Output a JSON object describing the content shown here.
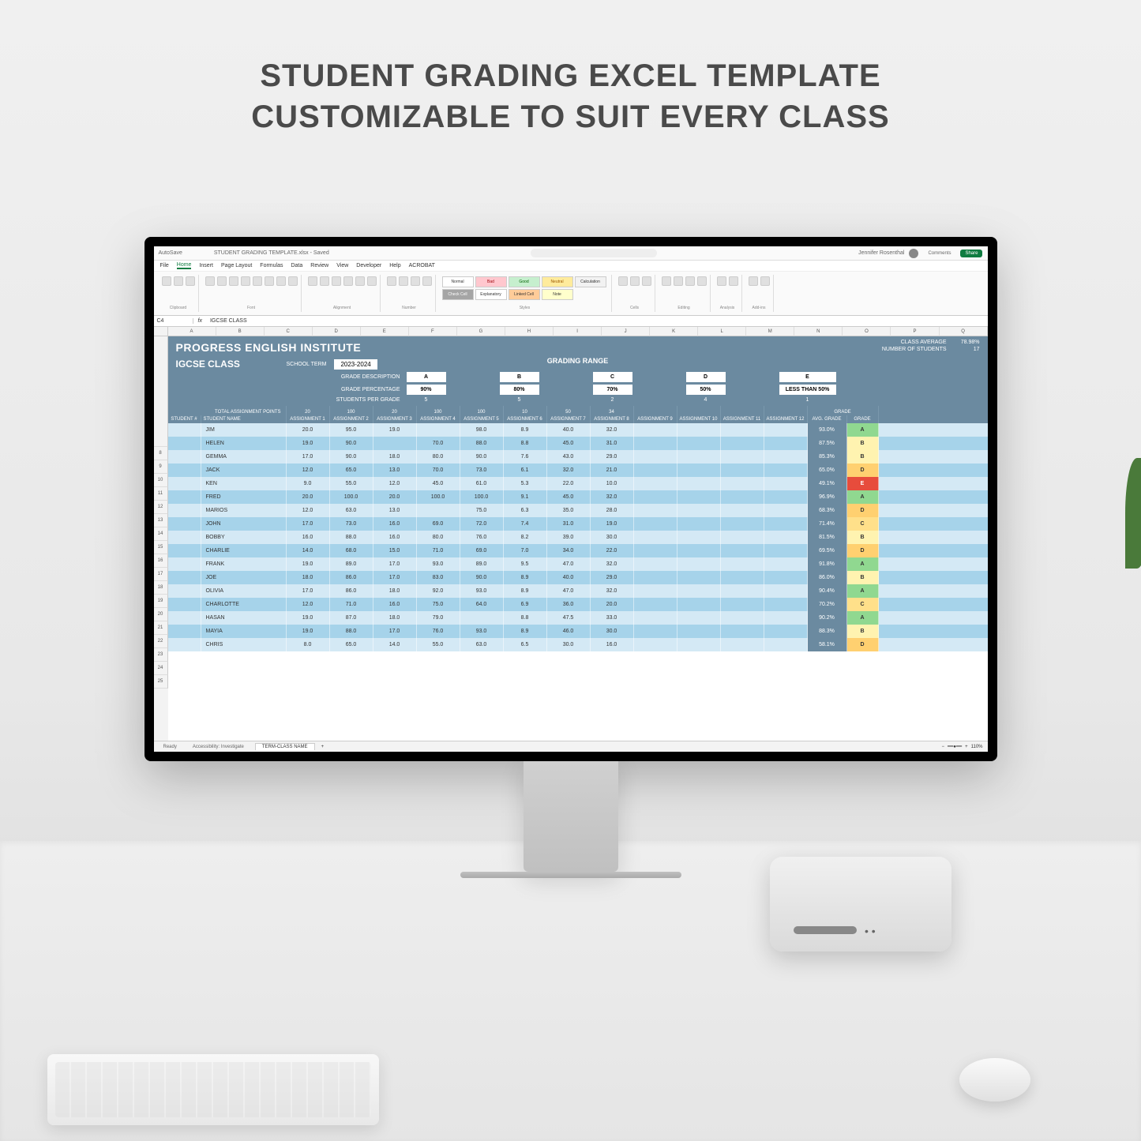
{
  "headline": {
    "line1": "STUDENT GRADING EXCEL TEMPLATE",
    "line2": "CUSTOMIZABLE TO SUIT EVERY CLASS"
  },
  "colors": {
    "header_blue": "#6b8aa0",
    "row_even": "#d4e9f5",
    "row_odd": "#a6d3ea",
    "grade_A": "#90d890",
    "grade_B": "#fff3b0",
    "grade_C": "#ffe08a",
    "grade_D": "#ffd070",
    "grade_E": "#e74c3c",
    "excel_green": "#107c41"
  },
  "excel": {
    "autosave_label": "AutoSave",
    "doc_name": "STUDENT GRADING TEMPLATE.xlsx - Saved",
    "search_placeholder": "Search",
    "user_name": "Jennifer Rosenthal",
    "comments_btn": "Comments",
    "share_btn": "Share",
    "menu": [
      "File",
      "Home",
      "Insert",
      "Page Layout",
      "Formulas",
      "Data",
      "Review",
      "View",
      "Developer",
      "Help",
      "ACROBAT"
    ],
    "active_menu": "Home",
    "ribbon_groups": [
      "Clipboard",
      "Font",
      "Alignment",
      "Number",
      "Styles",
      "Cells",
      "Editing",
      "Analysis",
      "Add-ins"
    ],
    "styles": [
      {
        "label": "Normal",
        "cls": "style-normal"
      },
      {
        "label": "Bad",
        "cls": "style-bad"
      },
      {
        "label": "Good",
        "cls": "style-good"
      },
      {
        "label": "Neutral",
        "cls": "style-neutral"
      },
      {
        "label": "Calculation",
        "cls": "style-calc"
      },
      {
        "label": "Check Cell",
        "cls": "style-check"
      },
      {
        "label": "Explanatory",
        "cls": "style-exp"
      },
      {
        "label": "Linked Cell",
        "cls": "style-link"
      },
      {
        "label": "Note",
        "cls": "style-note"
      }
    ],
    "name_box": "C4",
    "fx": "fx",
    "formula": "IGCSE CLASS",
    "cols": [
      "A",
      "B",
      "C",
      "D",
      "E",
      "F",
      "G",
      "H",
      "I",
      "J",
      "K",
      "L",
      "M",
      "N",
      "O",
      "P",
      "Q"
    ],
    "sheet_tab": "TERM-CLASS NAME",
    "add_sheet": "+",
    "status": "Ready",
    "accessibility": "Accessibility: Investigate",
    "zoom": "110%"
  },
  "sheet": {
    "institute": "PROGRESS ENGLISH INSTITUTE",
    "class_name": "IGCSE CLASS",
    "school_term_label": "SCHOOL TERM",
    "school_term": "2023-2024",
    "grading_range_label": "GRADING RANGE",
    "class_avg_label": "CLASS AVERAGE",
    "class_avg": "78.98%",
    "num_students_label": "NUMBER OF STUDENTS",
    "num_students": "17",
    "grade_desc_label": "GRADE DESCRIPTION",
    "grade_pct_label": "GRADE PERCENTAGE",
    "students_per_grade_label": "STUDENTS PER GRADE",
    "total_points_label": "TOTAL ASSIGNMENT POINTS",
    "grade_section_label": "GRADE",
    "grades": [
      {
        "letter": "A",
        "pct": "90%",
        "count": "5"
      },
      {
        "letter": "B",
        "pct": "80%",
        "count": "5"
      },
      {
        "letter": "C",
        "pct": "70%",
        "count": "2"
      },
      {
        "letter": "D",
        "pct": "50%",
        "count": "4"
      },
      {
        "letter": "E",
        "pct": "LESS THAN 50%",
        "count": "1"
      }
    ],
    "points": [
      "20",
      "100",
      "20",
      "100",
      "100",
      "10",
      "50",
      "34",
      "",
      "",
      "",
      ""
    ],
    "col_headers": {
      "student_num": "STUDENT #",
      "student_name": "STUDENT NAME",
      "assignments": [
        "ASSIGNMENT 1",
        "ASSIGNMENT 2",
        "ASSIGNMENT 3",
        "ASSIGNMENT 4",
        "ASSIGNMENT 5",
        "ASSIGNMENT 6",
        "ASSIGNMENT 7",
        "ASSIGNMENT 8",
        "ASSIGNMENT 9",
        "ASSIGNMENT 10",
        "ASSIGNMENT 11",
        "ASSIGNMENT 12"
      ],
      "avg_grade": "AVG. GRADE",
      "grade": "GRADE"
    },
    "students": [
      {
        "name": "JIM",
        "a": [
          "20.0",
          "95.0",
          "19.0",
          "",
          "98.0",
          "8.9",
          "40.0",
          "32.0"
        ],
        "avg": "93.0%",
        "grade": "A"
      },
      {
        "name": "HELEN",
        "a": [
          "19.0",
          "90.0",
          "",
          "70.0",
          "88.0",
          "8.8",
          "45.0",
          "31.0"
        ],
        "avg": "87.5%",
        "grade": "B"
      },
      {
        "name": "GEMMA",
        "a": [
          "17.0",
          "90.0",
          "18.0",
          "80.0",
          "90.0",
          "7.6",
          "43.0",
          "29.0"
        ],
        "avg": "85.3%",
        "grade": "B"
      },
      {
        "name": "JACK",
        "a": [
          "12.0",
          "65.0",
          "13.0",
          "70.0",
          "73.0",
          "6.1",
          "32.0",
          "21.0"
        ],
        "avg": "65.0%",
        "grade": "D"
      },
      {
        "name": "KEN",
        "a": [
          "9.0",
          "55.0",
          "12.0",
          "45.0",
          "61.0",
          "5.3",
          "22.0",
          "10.0"
        ],
        "avg": "49.1%",
        "grade": "E"
      },
      {
        "name": "FRED",
        "a": [
          "20.0",
          "100.0",
          "20.0",
          "100.0",
          "100.0",
          "9.1",
          "45.0",
          "32.0"
        ],
        "avg": "96.9%",
        "grade": "A"
      },
      {
        "name": "MARIOS",
        "a": [
          "12.0",
          "63.0",
          "13.0",
          "",
          "75.0",
          "6.3",
          "35.0",
          "28.0"
        ],
        "avg": "68.3%",
        "grade": "D"
      },
      {
        "name": "JOHN",
        "a": [
          "17.0",
          "73.0",
          "16.0",
          "69.0",
          "72.0",
          "7.4",
          "31.0",
          "19.0"
        ],
        "avg": "71.4%",
        "grade": "C"
      },
      {
        "name": "BOBBY",
        "a": [
          "16.0",
          "88.0",
          "16.0",
          "80.0",
          "76.0",
          "8.2",
          "39.0",
          "30.0"
        ],
        "avg": "81.5%",
        "grade": "B"
      },
      {
        "name": "CHARLIE",
        "a": [
          "14.0",
          "68.0",
          "15.0",
          "71.0",
          "69.0",
          "7.0",
          "34.0",
          "22.0"
        ],
        "avg": "69.5%",
        "grade": "D"
      },
      {
        "name": "FRANK",
        "a": [
          "19.0",
          "89.0",
          "17.0",
          "93.0",
          "89.0",
          "9.5",
          "47.0",
          "32.0"
        ],
        "avg": "91.8%",
        "grade": "A"
      },
      {
        "name": "JOE",
        "a": [
          "18.0",
          "86.0",
          "17.0",
          "83.0",
          "90.0",
          "8.9",
          "40.0",
          "29.0"
        ],
        "avg": "86.0%",
        "grade": "B"
      },
      {
        "name": "OLIVIA",
        "a": [
          "17.0",
          "86.0",
          "18.0",
          "92.0",
          "93.0",
          "8.9",
          "47.0",
          "32.0"
        ],
        "avg": "90.4%",
        "grade": "A"
      },
      {
        "name": "CHARLOTTE",
        "a": [
          "12.0",
          "71.0",
          "16.0",
          "75.0",
          "64.0",
          "6.9",
          "36.0",
          "20.0"
        ],
        "avg": "70.2%",
        "grade": "C"
      },
      {
        "name": "HASAN",
        "a": [
          "19.0",
          "87.0",
          "18.0",
          "79.0",
          "",
          "8.8",
          "47.5",
          "33.0"
        ],
        "avg": "90.2%",
        "grade": "A"
      },
      {
        "name": "MAYIA",
        "a": [
          "19.0",
          "88.0",
          "17.0",
          "76.0",
          "93.0",
          "8.9",
          "46.0",
          "30.0"
        ],
        "avg": "88.3%",
        "grade": "B"
      },
      {
        "name": "CHRIS",
        "a": [
          "8.0",
          "65.0",
          "14.0",
          "55.0",
          "63.0",
          "6.5",
          "30.0",
          "16.0"
        ],
        "avg": "58.1%",
        "grade": "D"
      }
    ]
  }
}
